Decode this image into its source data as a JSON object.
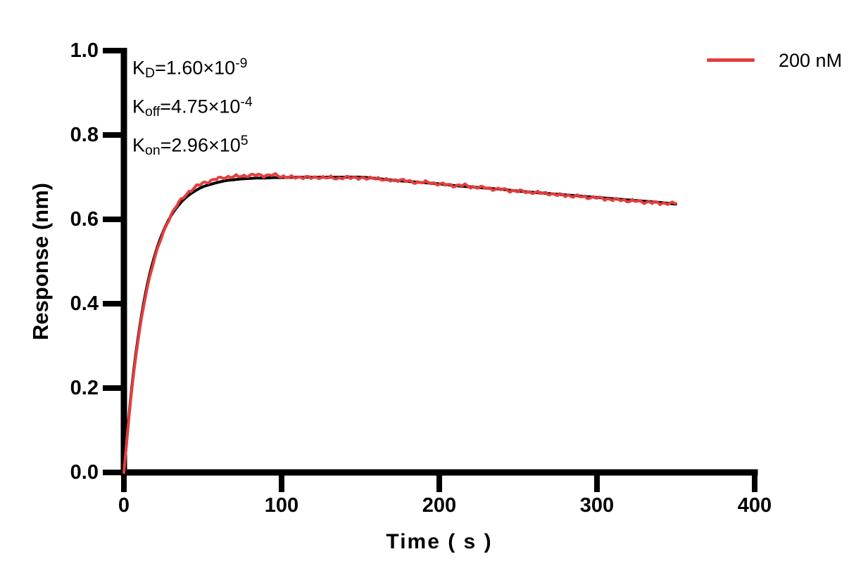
{
  "chart_data": {
    "type": "line",
    "title": "",
    "xlabel": "Time ( s )",
    "ylabel": "Response (nm)",
    "xlim": [
      0,
      400
    ],
    "ylim": [
      0.0,
      1.0
    ],
    "grid": false,
    "xticks": [
      0,
      100,
      200,
      300,
      400
    ],
    "xtick_labels": [
      "0",
      "100",
      "200",
      "300",
      "400"
    ],
    "yticks": [
      0.0,
      0.2,
      0.4,
      0.6,
      0.8,
      1.0
    ],
    "ytick_labels": [
      "0.0",
      "0.2",
      "0.4",
      "0.6",
      "0.8",
      "1.0"
    ],
    "axis_color": "#000000",
    "annotations": [
      {
        "name": "KD",
        "base": "K",
        "sub": "D",
        "mid": "=1.60×10",
        "sup": "-9"
      },
      {
        "name": "Koff",
        "base": "K",
        "sub": "off",
        "mid": "=4.75×10",
        "sup": "-4"
      },
      {
        "name": "Kon",
        "base": "K",
        "sub": "on",
        "mid": "=2.96×10",
        "sup": "5"
      }
    ],
    "legend": {
      "position": "top-right",
      "entries": [
        {
          "label": "200 nM",
          "color": "#E33E3E"
        }
      ]
    },
    "series": [
      {
        "name": "fit-curve",
        "color": "#000000",
        "width": 4,
        "noise_amp": 0,
        "x": [
          0,
          5,
          10,
          15,
          20,
          25,
          30,
          35,
          40,
          45,
          50,
          55,
          60,
          65,
          70,
          75,
          80,
          85,
          90,
          95,
          100,
          110,
          120,
          130,
          140,
          150,
          160,
          170,
          180,
          190,
          200,
          210,
          220,
          230,
          240,
          250,
          260,
          270,
          280,
          290,
          300,
          310,
          320,
          330,
          340,
          350
        ],
        "y": [
          0,
          0.202,
          0.345,
          0.448,
          0.52,
          0.572,
          0.609,
          0.635,
          0.654,
          0.667,
          0.677,
          0.683,
          0.688,
          0.692,
          0.694,
          0.696,
          0.697,
          0.698,
          0.698,
          0.699,
          0.699,
          0.7,
          0.7,
          0.7,
          0.7,
          0.7,
          0.697,
          0.693,
          0.69,
          0.687,
          0.684,
          0.68,
          0.677,
          0.674,
          0.671,
          0.667,
          0.664,
          0.661,
          0.658,
          0.655,
          0.652,
          0.649,
          0.646,
          0.643,
          0.64,
          0.636
        ]
      },
      {
        "name": "data-200nM",
        "color": "#E33E3E",
        "width": 4,
        "noise_amp": 0.0024,
        "x": [
          0,
          5,
          10,
          15,
          20,
          25,
          30,
          35,
          40,
          45,
          50,
          55,
          60,
          65,
          70,
          75,
          80,
          85,
          90,
          95,
          100,
          105,
          110,
          115,
          120,
          125,
          130,
          135,
          140,
          145,
          150,
          155,
          160,
          165,
          170,
          175,
          180,
          185,
          190,
          195,
          200,
          205,
          210,
          215,
          220,
          225,
          230,
          235,
          240,
          245,
          250,
          255,
          260,
          265,
          270,
          275,
          280,
          285,
          290,
          295,
          300,
          305,
          310,
          315,
          320,
          325,
          330,
          335,
          340,
          345,
          350
        ],
        "y": [
          0,
          0.196,
          0.338,
          0.441,
          0.514,
          0.568,
          0.611,
          0.64,
          0.661,
          0.675,
          0.686,
          0.691,
          0.697,
          0.7,
          0.701,
          0.703,
          0.704,
          0.705,
          0.704,
          0.705,
          0.702,
          0.7,
          0.699,
          0.701,
          0.698,
          0.7,
          0.699,
          0.697,
          0.7,
          0.698,
          0.699,
          0.696,
          0.698,
          0.694,
          0.692,
          0.694,
          0.69,
          0.688,
          0.688,
          0.686,
          0.684,
          0.682,
          0.68,
          0.681,
          0.677,
          0.676,
          0.674,
          0.672,
          0.671,
          0.668,
          0.667,
          0.665,
          0.664,
          0.662,
          0.661,
          0.658,
          0.657,
          0.655,
          0.654,
          0.652,
          0.651,
          0.649,
          0.647,
          0.646,
          0.644,
          0.643,
          0.641,
          0.64,
          0.638,
          0.638,
          0.638
        ]
      }
    ]
  }
}
